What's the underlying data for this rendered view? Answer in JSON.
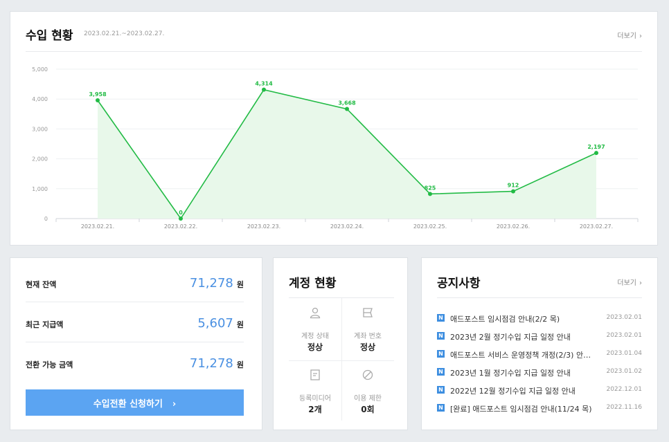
{
  "income": {
    "title": "수입 현황",
    "range": "2023.02.21.~2023.02.27.",
    "more": "더보기",
    "chart_data": {
      "type": "area",
      "title": "",
      "xlabel": "",
      "ylabel": "",
      "ylim": [
        0,
        5000
      ],
      "yticks": [
        0,
        1000,
        2000,
        3000,
        4000,
        5000
      ],
      "ytick_labels": [
        "0",
        "1,000",
        "2,000",
        "3,000",
        "4,000",
        "5,000"
      ],
      "grid": true,
      "categories": [
        "2023.02.21.",
        "2023.02.22.",
        "2023.02.23.",
        "2023.02.24.",
        "2023.02.25.",
        "2023.02.26.",
        "2023.02.27."
      ],
      "series": [
        {
          "values": [
            3958,
            0,
            4314,
            3668,
            825,
            912,
            2197
          ],
          "labels": [
            "3,958",
            "0",
            "4,314",
            "3,668",
            "825",
            "912",
            "2,197"
          ],
          "color": "#22bb45"
        }
      ]
    }
  },
  "balance": {
    "rows": [
      {
        "label": "현재 잔액",
        "value": "71,278",
        "unit": "원"
      },
      {
        "label": "최근 지급액",
        "value": "5,607",
        "unit": "원"
      },
      {
        "label": "전환 가능 금액",
        "value": "71,278",
        "unit": "원"
      }
    ],
    "button": "수입전환 신청하기",
    "button_chevron": "›"
  },
  "account": {
    "title": "계정 현황",
    "cells": [
      {
        "icon": "user-icon",
        "label": "계정 상태",
        "value": "정상"
      },
      {
        "icon": "bank-card-icon",
        "label": "계좌 번호",
        "value": "정상"
      },
      {
        "icon": "document-icon",
        "label": "등록미디어",
        "value": "2개"
      },
      {
        "icon": "ban-icon",
        "label": "이용 제한",
        "value": "0회"
      }
    ]
  },
  "notice": {
    "title": "공지사항",
    "more": "더보기",
    "badge": "N",
    "items": [
      {
        "text": "애드포스트 임시점검 안내(2/2 목)",
        "date": "2023.02.01"
      },
      {
        "text": "2023년 2월 정기수입 지급 일정 안내",
        "date": "2023.02.01"
      },
      {
        "text": "애드포스트 서비스 운영정책 개정(2/3) 안…",
        "date": "2023.01.04"
      },
      {
        "text": "2023년 1월 정기수입 지급 일정 안내",
        "date": "2023.01.02"
      },
      {
        "text": "2022년 12월 정기수입 지급 일정 안내",
        "date": "2022.12.01"
      },
      {
        "text": "[완료] 애드포스트 임시점검 안내(11/24 목)",
        "date": "2022.11.16"
      }
    ]
  },
  "common": {
    "chevron": "›"
  },
  "colors": {
    "accent": "#4a90e2",
    "button": "#5ba4f2",
    "line": "#22bb45",
    "area": "#e8f8ea",
    "badge": "#3d8ee0"
  }
}
